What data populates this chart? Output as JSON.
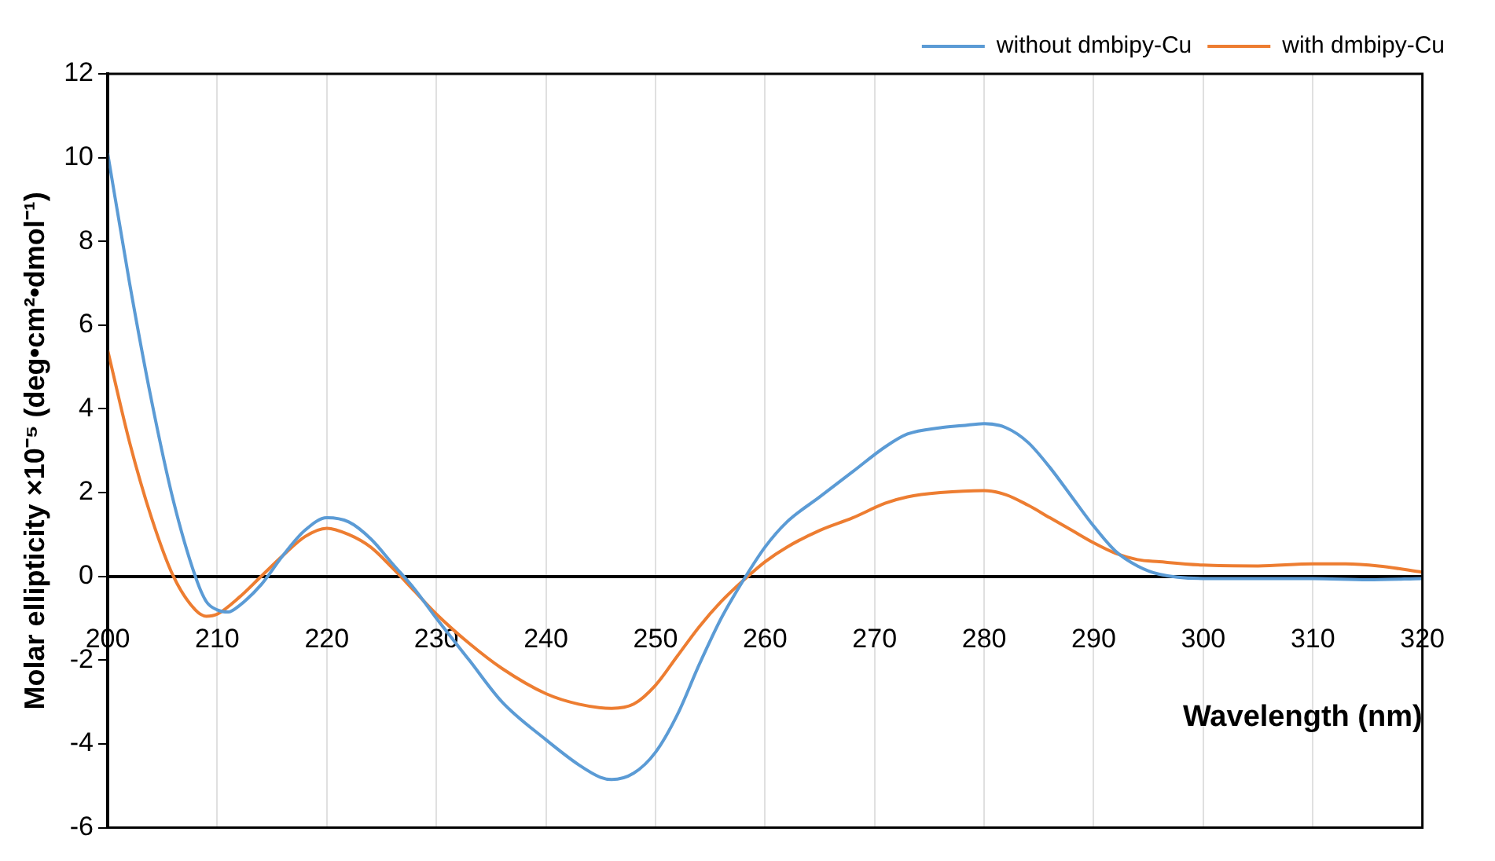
{
  "chart_data": {
    "type": "line",
    "xlabel": "Wavelength (nm)",
    "ylabel": "Molar ellipticity ×10⁻⁵ (deg•cm²•dmol⁻¹)",
    "xlim": [
      200,
      320
    ],
    "xticks": [
      200,
      210,
      220,
      230,
      240,
      250,
      260,
      270,
      280,
      290,
      300,
      310,
      320
    ],
    "ylim": [
      -6,
      12
    ],
    "yticks": [
      -6,
      -4,
      -2,
      0,
      2,
      4,
      6,
      8,
      10,
      12
    ],
    "grid": "x",
    "legend": "top right",
    "marker": "none",
    "line_style": "solid",
    "series": [
      {
        "name": "without dmbipy-Cu",
        "color": "#5b9bd5",
        "x": [
          200,
          202,
          204,
          206,
          208,
          209,
          210,
          211,
          212,
          214,
          216,
          218,
          220,
          222,
          224,
          226,
          228,
          230,
          233,
          236,
          240,
          243,
          245,
          246,
          248,
          250,
          252,
          254,
          256,
          258,
          260,
          262,
          265,
          268,
          271,
          273,
          276,
          278,
          280,
          282,
          284,
          286,
          288,
          290,
          292,
          294,
          296,
          300,
          305,
          310,
          315,
          320
        ],
        "values": [
          10.1,
          7,
          4.2,
          1.8,
          0,
          -0.6,
          -0.8,
          -0.85,
          -0.7,
          -0.2,
          0.5,
          1.1,
          1.4,
          1.3,
          0.9,
          0.3,
          -0.3,
          -1.0,
          -2.0,
          -3.0,
          -3.9,
          -4.5,
          -4.8,
          -4.85,
          -4.7,
          -4.2,
          -3.3,
          -2.1,
          -1.0,
          -0.1,
          0.7,
          1.3,
          1.9,
          2.5,
          3.1,
          3.4,
          3.55,
          3.6,
          3.65,
          3.55,
          3.2,
          2.6,
          1.9,
          1.2,
          0.6,
          0.25,
          0.05,
          -0.05,
          -0.05,
          -0.05,
          -0.08,
          -0.05
        ]
      },
      {
        "name": "with dmbipy-Cu",
        "color": "#ed7d31",
        "x": [
          200,
          202,
          204,
          206,
          208,
          209,
          210,
          212,
          214,
          216,
          218,
          220,
          222,
          224,
          226,
          228,
          230,
          233,
          236,
          240,
          243,
          246,
          248,
          250,
          252,
          254,
          256,
          258,
          260,
          262,
          265,
          268,
          271,
          273,
          276,
          280,
          282,
          284,
          286,
          288,
          290,
          292,
          294,
          296,
          300,
          305,
          310,
          313,
          316,
          320
        ],
        "values": [
          5.4,
          3.2,
          1.4,
          0,
          -0.8,
          -0.95,
          -0.9,
          -0.5,
          0,
          0.5,
          0.95,
          1.15,
          1.0,
          0.7,
          0.2,
          -0.35,
          -0.9,
          -1.6,
          -2.2,
          -2.8,
          -3.05,
          -3.15,
          -3.05,
          -2.6,
          -1.9,
          -1.2,
          -0.6,
          -0.1,
          0.35,
          0.7,
          1.1,
          1.4,
          1.75,
          1.9,
          2.0,
          2.05,
          1.95,
          1.7,
          1.4,
          1.1,
          0.8,
          0.55,
          0.4,
          0.35,
          0.27,
          0.25,
          0.3,
          0.3,
          0.25,
          0.1
        ]
      }
    ]
  }
}
